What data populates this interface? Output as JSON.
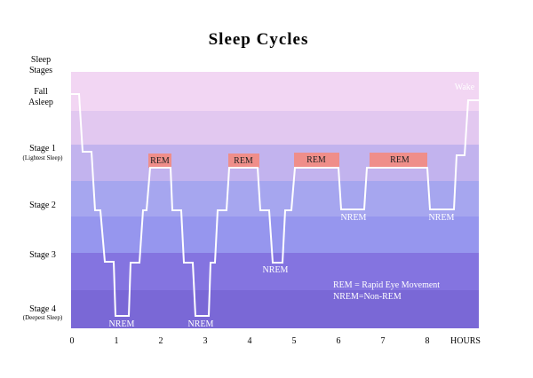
{
  "title": "Sleep Cycles",
  "y_axis": {
    "header_line1": "Sleep",
    "header_line2": "Stages",
    "fall_asleep_line1": "Fall",
    "fall_asleep_line2": "Asleep",
    "stage1": "Stage 1",
    "stage1_sub": "(Lightest Sleep)",
    "stage2": "Stage 2",
    "stage3": "Stage 3",
    "stage4": "Stage 4",
    "stage4_sub": "(Deepest Sleep)"
  },
  "x_axis": {
    "ticks": [
      "0",
      "1",
      "2",
      "3",
      "4",
      "5",
      "6",
      "7",
      "8"
    ],
    "unit_label": "HOURS"
  },
  "labels": {
    "wake": "Wake",
    "rem": "REM",
    "nrem": "NREM"
  },
  "legend": {
    "line1": "REM = Rapid Eye Movement",
    "line2": "NREM=Non-REM"
  },
  "colors": {
    "band_wake": "#f2d6f3",
    "band_fall": "#e2c8f0",
    "band_stage1": "#c2b3ee",
    "band_stage2a": "#a6a6ef",
    "band_stage2b": "#9696ee",
    "band_stage3": "#8474e0",
    "band_stage4": "#7a68d6",
    "hypnogram_line": "#ffffff",
    "rem_box": "#ef8e8a"
  }
}
